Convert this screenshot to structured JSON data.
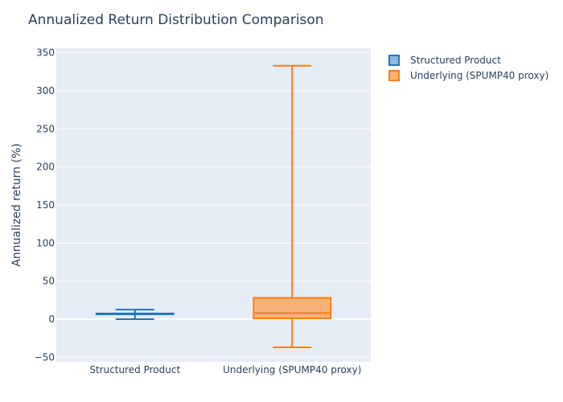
{
  "chart_data": {
    "type": "box",
    "title": "Annualized Return Distribution Comparison",
    "xlabel": "",
    "ylabel": "Annualized return (%)",
    "ylim": [
      -56,
      356
    ],
    "yticks": [
      -50,
      0,
      50,
      100,
      150,
      200,
      250,
      300,
      350
    ],
    "ytick_labels": [
      "−50",
      "0",
      "50",
      "100",
      "150",
      "200",
      "250",
      "300",
      "350"
    ],
    "categories": [
      "Structured Product",
      "Underlying (SPUMP40 proxy)"
    ],
    "legend_position": "top-right",
    "grid": true,
    "series": [
      {
        "name": "Structured Product",
        "color": "#1f77b4",
        "fill": "#8fb8da",
        "min": 0,
        "q1": 6.5,
        "median": 7,
        "q3": 7.5,
        "max": 12.5
      },
      {
        "name": "Underlying (SPUMP40 proxy)",
        "color": "#ff7f0e",
        "fill": "#f8b27a",
        "min": -37,
        "q1": 1,
        "median": 8,
        "q3": 28,
        "max": 333
      }
    ]
  }
}
